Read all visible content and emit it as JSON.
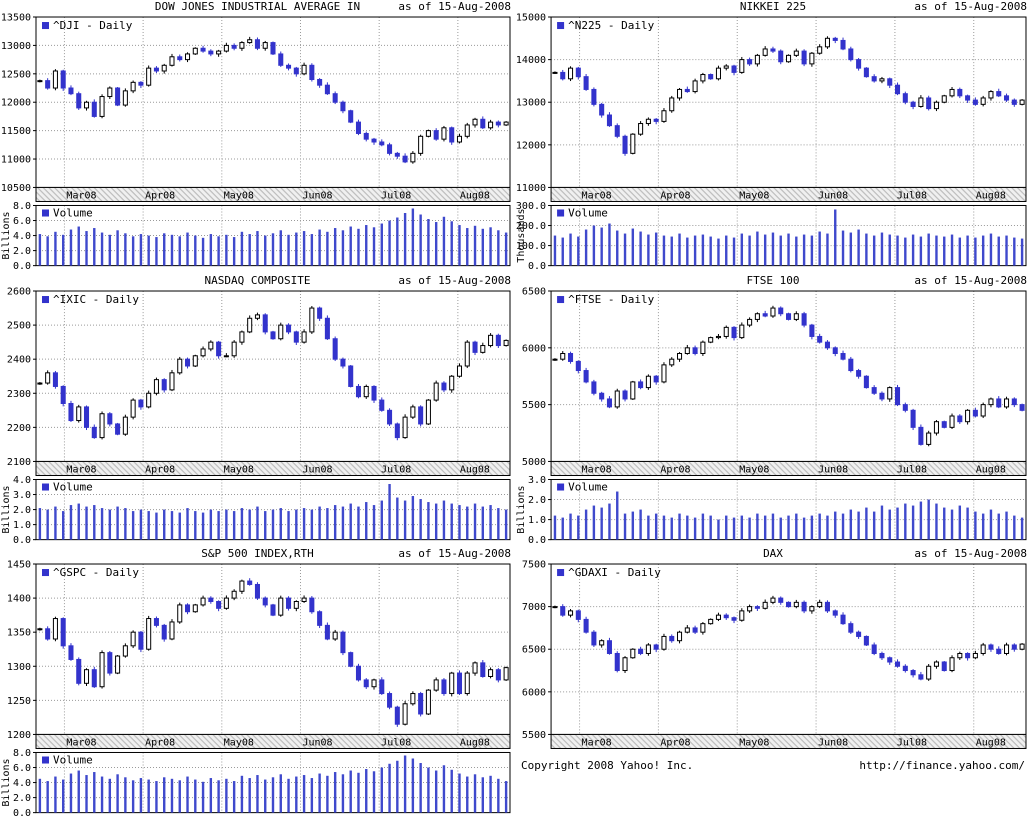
{
  "page": {
    "background": "#ffffff"
  },
  "colors": {
    "candle_up_fill": "#ffffff",
    "candle_up_stroke": "#000000",
    "candle_down": "#3333cc",
    "volume_bar": "#3f49cc",
    "legend_square": "#3333cc",
    "grid": "#9a9a9a",
    "axis": "#000000",
    "hatch_bg": "#f0f0f0",
    "hatch_line": "#bdbdbd"
  },
  "months": [
    "Mar08",
    "Apr08",
    "May08",
    "Jun08",
    "Jul08",
    "Aug08"
  ],
  "footer": {
    "copyright": "Copyright 2008 Yahoo! Inc.",
    "url": "http://finance.yahoo.com/"
  },
  "chart_data": [
    {
      "type": "candlestick",
      "title": "DOW JONES INDUSTRIAL AVERAGE IN",
      "as_of": "as of 15-Aug-2008",
      "symbol": "^DJI - Daily",
      "x_ticks": [
        "Mar08",
        "Apr08",
        "May08",
        "Jun08",
        "Jul08",
        "Aug08"
      ],
      "price": {
        "ylim": [
          10500,
          13500
        ],
        "tick_step": 500,
        "close": [
          12380,
          12250,
          12550,
          12250,
          12150,
          11900,
          12000,
          11750,
          12100,
          12250,
          11950,
          12200,
          12350,
          12300,
          12600,
          12550,
          12650,
          12800,
          12750,
          12850,
          12950,
          12900,
          12850,
          12900,
          13000,
          12950,
          13050,
          13100,
          12950,
          13050,
          12850,
          12650,
          12600,
          12500,
          12650,
          12400,
          12300,
          12150,
          12000,
          11850,
          11650,
          11450,
          11350,
          11300,
          11250,
          11100,
          11050,
          10950,
          11100,
          11400,
          11500,
          11350,
          11550,
          11300,
          11400,
          11600,
          11700,
          11550,
          11650,
          11600,
          11650
        ]
      },
      "volume": {
        "label": "Volume",
        "unit": "Billions",
        "ylim": [
          0,
          8
        ],
        "tick_step": 2,
        "values": [
          4.2,
          3.9,
          4.5,
          4.1,
          4.8,
          5.2,
          4.6,
          5.0,
          4.4,
          4.1,
          4.7,
          4.3,
          3.9,
          4.2,
          4.0,
          3.8,
          4.3,
          4.1,
          3.9,
          4.4,
          4.0,
          3.7,
          4.2,
          3.9,
          4.1,
          3.8,
          4.5,
          4.2,
          4.6,
          4.0,
          4.3,
          4.7,
          4.1,
          4.4,
          4.6,
          4.2,
          4.8,
          4.5,
          5.0,
          4.7,
          5.2,
          4.9,
          5.4,
          5.1,
          5.6,
          6.0,
          6.4,
          7.0,
          7.6,
          6.8,
          6.2,
          5.8,
          6.5,
          5.9,
          5.4,
          5.0,
          5.3,
          4.9,
          5.1,
          4.7,
          4.4
        ]
      }
    },
    {
      "type": "candlestick",
      "title": "NIKKEI 225",
      "as_of": "as of 15-Aug-2008",
      "symbol": "^N225 - Daily",
      "x_ticks": [
        "Mar08",
        "Apr08",
        "May08",
        "Jun08",
        "Jul08",
        "Aug08"
      ],
      "price": {
        "ylim": [
          11000,
          15000
        ],
        "tick_step": 1000,
        "close": [
          13700,
          13550,
          13800,
          13600,
          13300,
          12950,
          12700,
          12450,
          12200,
          11800,
          12250,
          12500,
          12600,
          12550,
          12800,
          13100,
          13300,
          13250,
          13500,
          13650,
          13550,
          13800,
          13850,
          13700,
          14000,
          13900,
          14100,
          14250,
          14200,
          13950,
          14100,
          14200,
          13900,
          14150,
          14300,
          14500,
          14450,
          14250,
          14000,
          13800,
          13600,
          13500,
          13550,
          13400,
          13200,
          13000,
          12900,
          13100,
          12850,
          13000,
          13150,
          13300,
          13150,
          13050,
          12950,
          13100,
          13250,
          13150,
          13050,
          12950,
          13050
        ]
      },
      "volume": {
        "label": "Volume",
        "unit": "Thousands",
        "ylim": [
          0,
          300
        ],
        "tick_step": 100,
        "values": [
          150,
          140,
          160,
          145,
          180,
          200,
          190,
          210,
          175,
          160,
          185,
          170,
          155,
          165,
          150,
          145,
          160,
          140,
          150,
          155,
          145,
          135,
          150,
          140,
          160,
          150,
          170,
          155,
          165,
          150,
          160,
          145,
          155,
          150,
          170,
          160,
          280,
          175,
          165,
          180,
          160,
          150,
          165,
          155,
          150,
          140,
          155,
          145,
          160,
          150,
          145,
          155,
          140,
          150,
          140,
          150,
          160,
          145,
          150,
          140,
          135
        ]
      }
    },
    {
      "type": "candlestick",
      "title": "NASDAQ COMPOSITE",
      "as_of": "as of 15-Aug-2008",
      "symbol": "^IXIC - Daily",
      "x_ticks": [
        "Mar08",
        "Apr08",
        "May08",
        "Jun08",
        "Jul08",
        "Aug08"
      ],
      "price": {
        "ylim": [
          2100,
          2600
        ],
        "tick_step": 100,
        "close": [
          2330,
          2360,
          2320,
          2270,
          2220,
          2260,
          2200,
          2170,
          2240,
          2210,
          2180,
          2230,
          2280,
          2260,
          2300,
          2340,
          2310,
          2360,
          2400,
          2380,
          2410,
          2430,
          2450,
          2410,
          2410,
          2450,
          2480,
          2520,
          2530,
          2480,
          2460,
          2500,
          2480,
          2450,
          2480,
          2550,
          2520,
          2460,
          2400,
          2380,
          2320,
          2290,
          2320,
          2280,
          2250,
          2210,
          2170,
          2230,
          2260,
          2210,
          2280,
          2330,
          2310,
          2350,
          2380,
          2450,
          2420,
          2440,
          2470,
          2440,
          2455
        ]
      },
      "volume": {
        "label": "Volume",
        "unit": "Billions",
        "ylim": [
          0,
          4
        ],
        "tick_step": 1,
        "values": [
          2.1,
          2.0,
          2.2,
          1.9,
          2.3,
          2.4,
          2.2,
          2.3,
          2.1,
          2.0,
          2.2,
          2.1,
          1.9,
          2.0,
          1.9,
          1.8,
          2.0,
          1.9,
          1.8,
          2.1,
          1.9,
          1.8,
          2.0,
          1.9,
          2.0,
          1.9,
          2.1,
          2.0,
          2.2,
          1.9,
          2.0,
          2.1,
          1.9,
          2.0,
          2.1,
          2.0,
          2.2,
          2.1,
          2.3,
          2.2,
          2.4,
          2.2,
          2.5,
          2.3,
          2.6,
          3.7,
          2.8,
          2.6,
          2.9,
          2.7,
          2.5,
          2.4,
          2.6,
          2.4,
          2.3,
          2.2,
          2.4,
          2.2,
          2.3,
          2.1,
          2.0
        ]
      }
    },
    {
      "type": "candlestick",
      "title": "FTSE 100",
      "as_of": "as of 15-Aug-2008",
      "symbol": "^FTSE - Daily",
      "x_ticks": [
        "Mar08",
        "Apr08",
        "May08",
        "Jun08",
        "Jul08",
        "Aug08"
      ],
      "price": {
        "ylim": [
          5000,
          6500
        ],
        "tick_step": 500,
        "close": [
          5900,
          5950,
          5880,
          5800,
          5700,
          5600,
          5550,
          5480,
          5620,
          5550,
          5700,
          5650,
          5750,
          5700,
          5850,
          5900,
          5950,
          6000,
          5950,
          6050,
          6090,
          6100,
          6180,
          6090,
          6200,
          6250,
          6300,
          6280,
          6350,
          6300,
          6250,
          6300,
          6200,
          6100,
          6050,
          6000,
          5950,
          5900,
          5800,
          5750,
          5650,
          5600,
          5550,
          5650,
          5500,
          5450,
          5300,
          5150,
          5250,
          5350,
          5300,
          5400,
          5350,
          5450,
          5400,
          5500,
          5550,
          5480,
          5550,
          5500,
          5450
        ]
      },
      "volume": {
        "label": "Volume",
        "unit": "Billions",
        "ylim": [
          0,
          3
        ],
        "tick_step": 1,
        "values": [
          1.2,
          1.1,
          1.3,
          1.2,
          1.5,
          1.7,
          1.6,
          1.8,
          2.4,
          1.3,
          1.4,
          1.5,
          1.2,
          1.3,
          1.2,
          1.1,
          1.3,
          1.2,
          1.1,
          1.3,
          1.2,
          1.0,
          1.2,
          1.1,
          1.2,
          1.1,
          1.3,
          1.2,
          1.3,
          1.1,
          1.2,
          1.3,
          1.1,
          1.2,
          1.3,
          1.2,
          1.4,
          1.3,
          1.5,
          1.4,
          1.6,
          1.4,
          1.7,
          1.5,
          1.6,
          1.8,
          1.7,
          1.9,
          2.0,
          1.8,
          1.6,
          1.5,
          1.7,
          1.6,
          1.4,
          1.3,
          1.5,
          1.3,
          1.4,
          1.2,
          1.1
        ]
      }
    },
    {
      "type": "candlestick",
      "title": "S&P 500 INDEX,RTH",
      "as_of": "as of 15-Aug-2008",
      "symbol": "^GSPC - Daily",
      "x_ticks": [
        "Mar08",
        "Apr08",
        "May08",
        "Jun08",
        "Jul08",
        "Aug08"
      ],
      "price": {
        "ylim": [
          1200,
          1450
        ],
        "tick_step": 50,
        "close": [
          1355,
          1340,
          1370,
          1330,
          1310,
          1275,
          1295,
          1270,
          1320,
          1290,
          1315,
          1330,
          1350,
          1325,
          1370,
          1360,
          1340,
          1365,
          1390,
          1380,
          1390,
          1400,
          1395,
          1385,
          1400,
          1410,
          1425,
          1420,
          1400,
          1390,
          1375,
          1400,
          1385,
          1395,
          1400,
          1380,
          1360,
          1340,
          1350,
          1320,
          1300,
          1280,
          1270,
          1280,
          1260,
          1240,
          1215,
          1245,
          1260,
          1230,
          1265,
          1280,
          1260,
          1290,
          1260,
          1290,
          1305,
          1285,
          1295,
          1280,
          1298
        ]
      },
      "volume": {
        "label": "Volume",
        "unit": "Billions",
        "ylim": [
          0,
          8
        ],
        "tick_step": 2,
        "values": [
          4.5,
          4.2,
          4.8,
          4.4,
          5.2,
          5.6,
          5.0,
          5.4,
          4.8,
          4.5,
          5.1,
          4.7,
          4.3,
          4.6,
          4.4,
          4.2,
          4.7,
          4.5,
          4.3,
          4.8,
          4.4,
          4.1,
          4.6,
          4.3,
          4.5,
          4.2,
          4.9,
          4.6,
          5.0,
          4.4,
          4.7,
          5.1,
          4.5,
          4.8,
          5.0,
          4.6,
          5.2,
          4.9,
          5.4,
          5.1,
          5.6,
          5.3,
          5.8,
          5.5,
          6.0,
          6.5,
          6.9,
          7.6,
          7.2,
          6.6,
          6.0,
          5.6,
          6.3,
          5.7,
          5.2,
          4.8,
          5.1,
          4.7,
          4.9,
          4.5,
          4.2
        ]
      }
    },
    {
      "type": "candlestick",
      "title": "DAX",
      "as_of": "as of 15-Aug-2008",
      "symbol": "^GDAXI - Daily",
      "x_ticks": [
        "Mar08",
        "Apr08",
        "May08",
        "Jun08",
        "Jul08",
        "Aug08"
      ],
      "price": {
        "ylim": [
          5500,
          7500
        ],
        "tick_step": 500,
        "close": [
          7000,
          6900,
          6950,
          6850,
          6700,
          6550,
          6600,
          6450,
          6250,
          6400,
          6500,
          6450,
          6550,
          6500,
          6650,
          6600,
          6700,
          6750,
          6700,
          6800,
          6850,
          6900,
          6870,
          6840,
          6950,
          7000,
          6980,
          7050,
          7100,
          7050,
          7000,
          7050,
          6950,
          7000,
          7050,
          6950,
          6900,
          6800,
          6700,
          6650,
          6550,
          6450,
          6400,
          6350,
          6300,
          6250,
          6200,
          6150,
          6300,
          6350,
          6250,
          6400,
          6450,
          6400,
          6450,
          6550,
          6500,
          6450,
          6550,
          6500,
          6560
        ]
      },
      "volume": null
    }
  ]
}
